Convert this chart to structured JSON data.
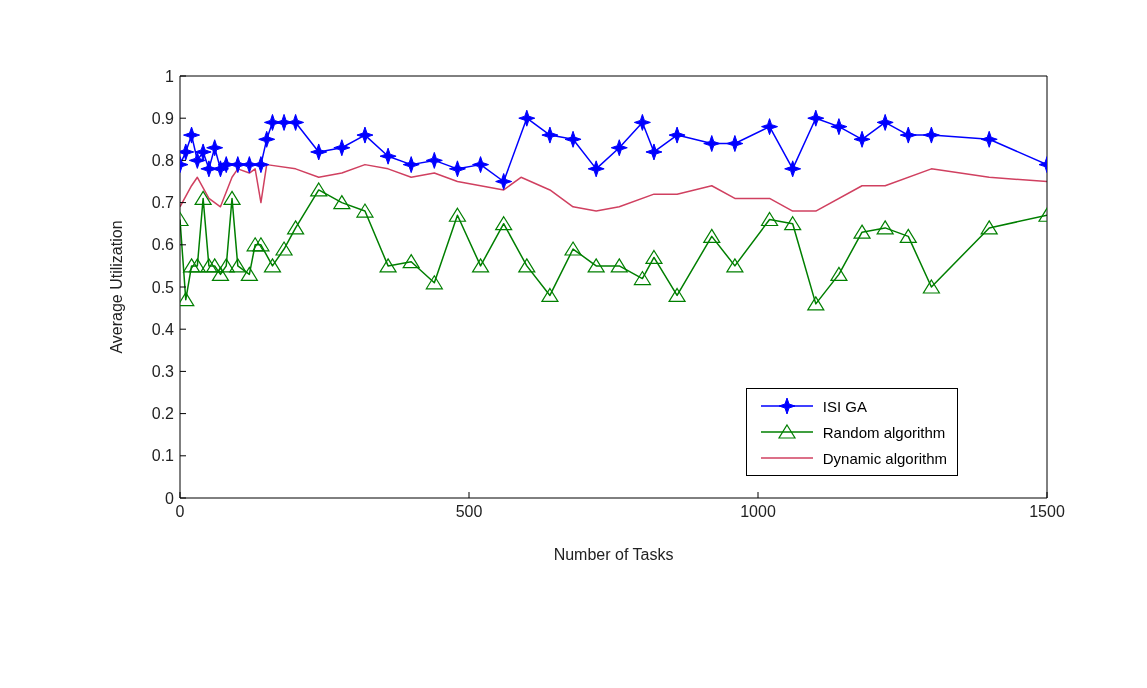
{
  "chart_data": {
    "type": "line",
    "xlabel": "Number of Tasks",
    "ylabel": "Average Utilization",
    "xlim": [
      0,
      1500
    ],
    "xticks": [
      0,
      500,
      1000,
      1500
    ],
    "ylim": [
      0,
      1
    ],
    "yticks": [
      0,
      0.1,
      0.2,
      0.3,
      0.4,
      0.5,
      0.6,
      0.7,
      0.8,
      0.9,
      1
    ],
    "grid": false,
    "legend": "bottom right",
    "line_style": "solid",
    "series": [
      {
        "name": "ISI GA",
        "color": "#0000ff",
        "marker": "star",
        "x": [
          0,
          10,
          20,
          30,
          40,
          50,
          60,
          70,
          80,
          100,
          120,
          140,
          150,
          160,
          180,
          200,
          240,
          280,
          320,
          360,
          400,
          440,
          480,
          520,
          560,
          600,
          640,
          680,
          720,
          760,
          800,
          820,
          860,
          920,
          960,
          1020,
          1060,
          1100,
          1140,
          1180,
          1220,
          1260,
          1300,
          1400,
          1500
        ],
        "values": [
          0.79,
          0.82,
          0.86,
          0.8,
          0.82,
          0.78,
          0.83,
          0.78,
          0.79,
          0.79,
          0.79,
          0.79,
          0.85,
          0.89,
          0.89,
          0.89,
          0.82,
          0.83,
          0.86,
          0.81,
          0.79,
          0.8,
          0.78,
          0.79,
          0.75,
          0.9,
          0.86,
          0.85,
          0.78,
          0.83,
          0.89,
          0.82,
          0.86,
          0.84,
          0.84,
          0.88,
          0.78,
          0.9,
          0.88,
          0.85,
          0.89,
          0.86,
          0.86,
          0.85,
          0.79
        ]
      },
      {
        "name": "Random algorithm",
        "color": "#007f00",
        "marker": "triangle",
        "x": [
          0,
          10,
          20,
          30,
          40,
          50,
          60,
          70,
          80,
          90,
          100,
          120,
          130,
          140,
          160,
          180,
          200,
          240,
          280,
          320,
          360,
          400,
          440,
          480,
          520,
          560,
          600,
          640,
          680,
          720,
          760,
          800,
          820,
          860,
          920,
          960,
          1020,
          1060,
          1100,
          1140,
          1180,
          1220,
          1260,
          1300,
          1400,
          1500
        ],
        "values": [
          0.66,
          0.47,
          0.55,
          0.55,
          0.71,
          0.55,
          0.55,
          0.53,
          0.55,
          0.71,
          0.55,
          0.53,
          0.6,
          0.6,
          0.55,
          0.59,
          0.64,
          0.73,
          0.7,
          0.68,
          0.55,
          0.56,
          0.51,
          0.67,
          0.55,
          0.65,
          0.55,
          0.48,
          0.59,
          0.55,
          0.55,
          0.52,
          0.57,
          0.48,
          0.62,
          0.55,
          0.66,
          0.65,
          0.46,
          0.53,
          0.63,
          0.64,
          0.62,
          0.5,
          0.64,
          0.67
        ]
      },
      {
        "name": "Dynamic algorithm",
        "color": "#d04060",
        "marker": "none",
        "x": [
          0,
          20,
          30,
          50,
          70,
          90,
          100,
          120,
          130,
          140,
          150,
          200,
          240,
          280,
          320,
          360,
          400,
          440,
          480,
          520,
          560,
          590,
          640,
          680,
          720,
          760,
          820,
          860,
          920,
          960,
          1020,
          1060,
          1100,
          1180,
          1220,
          1300,
          1400,
          1500
        ],
        "values": [
          0.69,
          0.74,
          0.76,
          0.71,
          0.69,
          0.76,
          0.78,
          0.77,
          0.78,
          0.7,
          0.79,
          0.78,
          0.76,
          0.77,
          0.79,
          0.78,
          0.76,
          0.77,
          0.75,
          0.74,
          0.73,
          0.76,
          0.73,
          0.69,
          0.68,
          0.69,
          0.72,
          0.72,
          0.74,
          0.71,
          0.71,
          0.68,
          0.68,
          0.74,
          0.74,
          0.78,
          0.76,
          0.75
        ]
      }
    ]
  }
}
